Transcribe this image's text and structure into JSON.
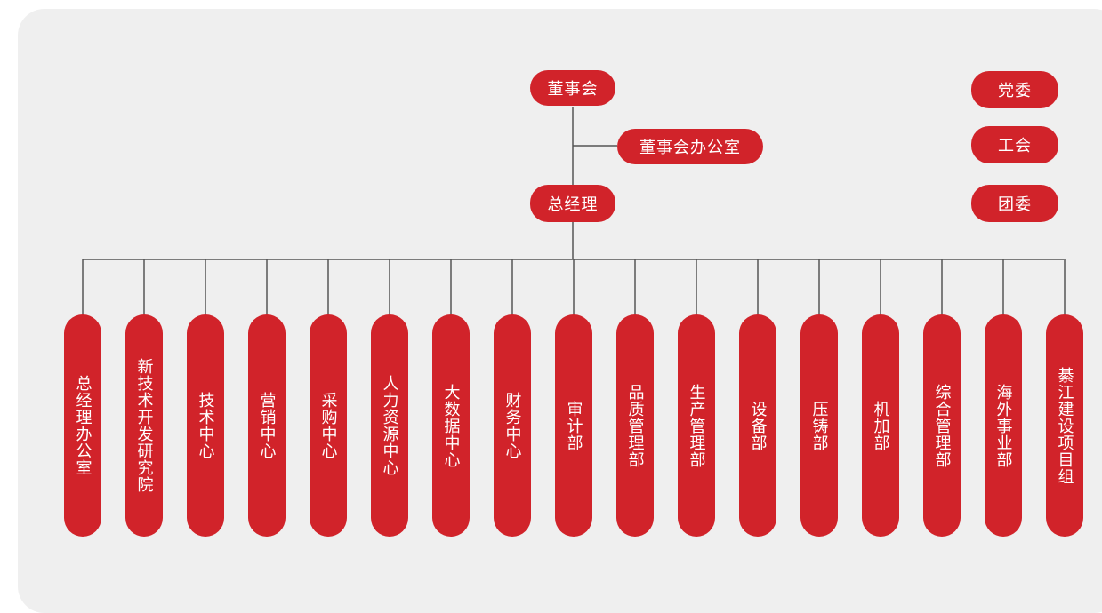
{
  "colors": {
    "node_fill": "#d1232a",
    "node_text": "#ffffff",
    "connector": "#555555",
    "background": "#efefef"
  },
  "chairman_board": "董事会",
  "board_office": "董事会办公室",
  "general_manager": "总经理",
  "side_orgs": [
    "党委",
    "工会",
    "团委"
  ],
  "departments": [
    "总经理办公室",
    "新技术开发研究院",
    "技术中心",
    "营销中心",
    "采购中心",
    "人力资源中心",
    "大数据中心",
    "财务中心",
    "审计部",
    "品质管理部",
    "生产管理部",
    "设备部",
    "压铸部",
    "机加部",
    "综合管理部",
    "海外事业部",
    "綦江建设项目组"
  ]
}
